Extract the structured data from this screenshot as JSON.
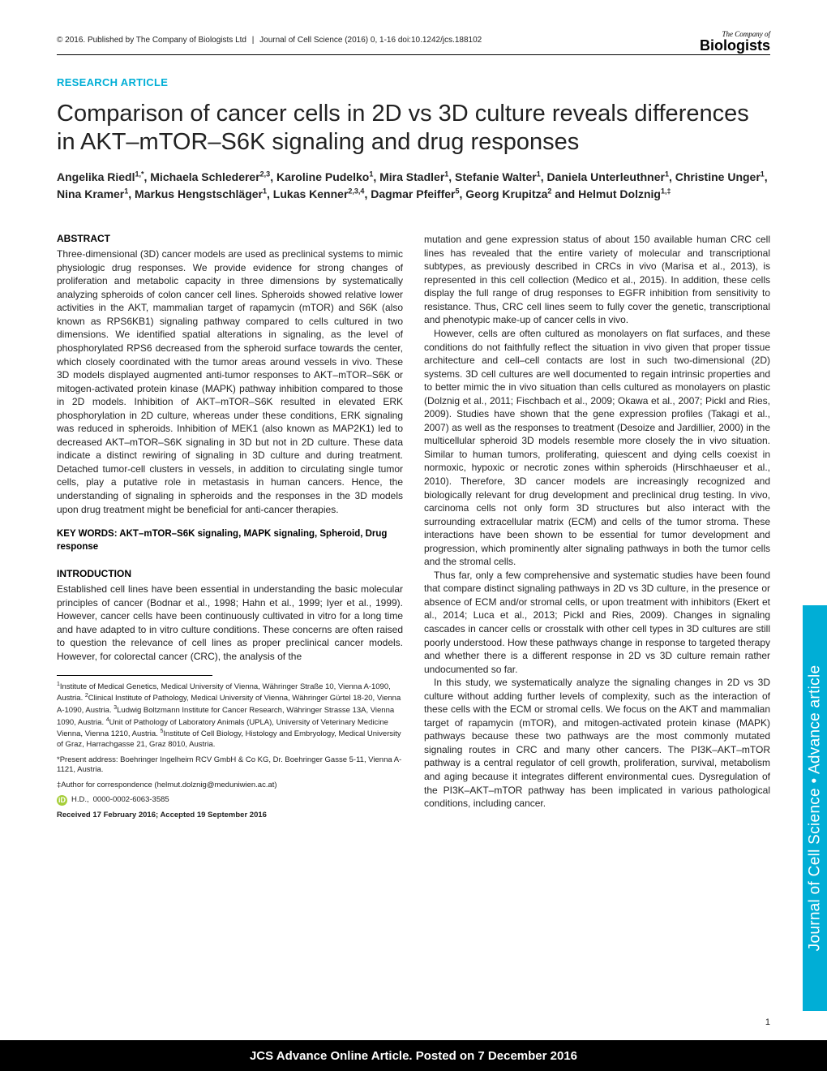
{
  "header": {
    "copyright": "© 2016. Published by The Company of Biologists Ltd",
    "journal_cite": "Journal of Cell Science (2016) 0, 1-16 doi:10.1242/jcs.188102",
    "logo_top": "The Company of",
    "logo_bottom": "Biologists"
  },
  "article_type": "RESEARCH ARTICLE",
  "title": "Comparison of cancer cells in 2D vs 3D culture reveals differences in AKT–mTOR–S6K signaling and drug responses",
  "authors_html": "Angelika Riedl<sup>1,*</sup>, Michaela Schlederer<sup>2,3</sup>, Karoline Pudelko<sup>1</sup>, Mira Stadler<sup>1</sup>, Stefanie Walter<sup>1</sup>, Daniela Unterleuthner<sup>1</sup>, Christine Unger<sup>1</sup>, Nina Kramer<sup>1</sup>, Markus Hengstschläger<sup>1</sup>, Lukas Kenner<sup>2,3,4</sup>, Dagmar Pfeiffer<sup>5</sup>, Georg Krupitza<sup>2</sup> and Helmut Dolznig<sup>1,‡</sup>",
  "abstract": {
    "heading": "ABSTRACT",
    "body": "Three-dimensional (3D) cancer models are used as preclinical systems to mimic physiologic drug responses. We provide evidence for strong changes of proliferation and metabolic capacity in three dimensions by systematically analyzing spheroids of colon cancer cell lines. Spheroids showed relative lower activities in the AKT, mammalian target of rapamycin (mTOR) and S6K (also known as RPS6KB1) signaling pathway compared to cells cultured in two dimensions. We identified spatial alterations in signaling, as the level of phosphorylated RPS6 decreased from the spheroid surface towards the center, which closely coordinated with the tumor areas around vessels in vivo. These 3D models displayed augmented anti-tumor responses to AKT–mTOR–S6K or mitogen-activated protein kinase (MAPK) pathway inhibition compared to those in 2D models. Inhibition of AKT–mTOR–S6K resulted in elevated ERK phosphorylation in 2D culture, whereas under these conditions, ERK signaling was reduced in spheroids. Inhibition of MEK1 (also known as MAP2K1) led to decreased AKT–mTOR–S6K signaling in 3D but not in 2D culture. These data indicate a distinct rewiring of signaling in 3D culture and during treatment. Detached tumor-cell clusters in vessels, in addition to circulating single tumor cells, play a putative role in metastasis in human cancers. Hence, the understanding of signaling in spheroids and the responses in the 3D models upon drug treatment might be beneficial for anti-cancer therapies."
  },
  "keywords": "KEY WORDS: AKT–mTOR–S6K signaling, MAPK signaling, Spheroid, Drug response",
  "introduction": {
    "heading": "INTRODUCTION",
    "body": "Established cell lines have been essential in understanding the basic molecular principles of cancer (Bodnar et al., 1998; Hahn et al., 1999; Iyer et al., 1999). However, cancer cells have been continuously cultivated in vitro for a long time and have adapted to in vitro culture conditions. These concerns are often raised to question the relevance of cell lines as proper preclinical cancer models. However, for colorectal cancer (CRC), the analysis of the"
  },
  "affiliations": {
    "list_html": "<sup>1</sup>Institute of Medical Genetics, Medical University of Vienna, Währinger Straße 10, Vienna A-1090, Austria. <sup>2</sup>Clinical Institute of Pathology, Medical University of Vienna, Währinger Gürtel 18-20, Vienna A-1090, Austria. <sup>3</sup>Ludwig Boltzmann Institute for Cancer Research, Währinger Strasse 13A, Vienna 1090, Austria. <sup>4</sup>Unit of Pathology of Laboratory Animals (UPLA), University of Veterinary Medicine Vienna, Vienna 1210, Austria. <sup>5</sup>Institute of Cell Biology, Histology and Embryology, Medical University of Graz, Harrachgasse 21, Graz 8010, Austria.",
    "present": "*Present address: Boehringer Ingelheim RCV GmbH & Co KG, Dr. Boehringer Gasse 5-11, Vienna A-1121, Austria.",
    "corresponding": "‡Author for correspondence (helmut.dolznig@meduniwien.ac.at)",
    "orcid_initials": "H.D.,",
    "orcid_id": "0000-0002-6063-3585",
    "received": "Received 17 February 2016; Accepted 19 September 2016"
  },
  "right_column": {
    "p1": "mutation and gene expression status of about 150 available human CRC cell lines has revealed that the entire variety of molecular and transcriptional subtypes, as previously described in CRCs in vivo (Marisa et al., 2013), is represented in this cell collection (Medico et al., 2015). In addition, these cells display the full range of drug responses to EGFR inhibition from sensitivity to resistance. Thus, CRC cell lines seem to fully cover the genetic, transcriptional and phenotypic make-up of cancer cells in vivo.",
    "p2": "However, cells are often cultured as monolayers on flat surfaces, and these conditions do not faithfully reflect the situation in vivo given that proper tissue architecture and cell–cell contacts are lost in such two-dimensional (2D) systems. 3D cell cultures are well documented to regain intrinsic properties and to better mimic the in vivo situation than cells cultured as monolayers on plastic (Dolznig et al., 2011; Fischbach et al., 2009; Okawa et al., 2007; Pickl and Ries, 2009). Studies have shown that the gene expression profiles (Takagi et al., 2007) as well as the responses to treatment (Desoize and Jardillier, 2000) in the multicellular spheroid 3D models resemble more closely the in vivo situation. Similar to human tumors, proliferating, quiescent and dying cells coexist in normoxic, hypoxic or necrotic zones within spheroids (Hirschhaeuser et al., 2010). Therefore, 3D cancer models are increasingly recognized and biologically relevant for drug development and preclinical drug testing. In vivo, carcinoma cells not only form 3D structures but also interact with the surrounding extracellular matrix (ECM) and cells of the tumor stroma. These interactions have been shown to be essential for tumor development and progression, which prominently alter signaling pathways in both the tumor cells and the stromal cells.",
    "p3": "Thus far, only a few comprehensive and systematic studies have been found that compare distinct signaling pathways in 2D vs 3D culture, in the presence or absence of ECM and/or stromal cells, or upon treatment with inhibitors (Ekert et al., 2014; Luca et al., 2013; Pickl and Ries, 2009). Changes in signaling cascades in cancer cells or crosstalk with other cell types in 3D cultures are still poorly understood. How these pathways change in response to targeted therapy and whether there is a different response in 2D vs 3D culture remain rather undocumented so far.",
    "p4": "In this study, we systematically analyze the signaling changes in 2D vs 3D culture without adding further levels of complexity, such as the interaction of these cells with the ECM or stromal cells. We focus on the AKT and mammalian target of rapamycin (mTOR), and mitogen-activated protein kinase (MAPK) pathways because these two pathways are the most commonly mutated signaling routes in CRC and many other cancers. The PI3K–AKT–mTOR pathway is a central regulator of cell growth, proliferation, survival, metabolism and aging because it integrates different environmental cues. Dysregulation of the PI3K–AKT–mTOR pathway has been implicated in various pathological conditions, including cancer."
  },
  "side_tab": "Journal of Cell Science • Advance article",
  "page_number": "1",
  "footer": "JCS Advance Online Article. Posted on 7 December 2016",
  "colors": {
    "accent": "#00aed6",
    "orcid": "#a6ce39",
    "text": "#222222",
    "footer_bg": "#000000"
  }
}
